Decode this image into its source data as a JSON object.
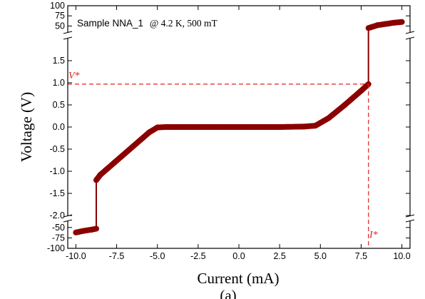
{
  "chart_data": {
    "type": "scatter",
    "title": "",
    "xlabel": "Current (mA)",
    "ylabel": "Voltage (V)",
    "caption": "(a)",
    "annotation_prefix": "Sample NNA_1",
    "annotation_conditions": "@ 4.2 K, 500 mT",
    "xlim": [
      -10.5,
      10.5
    ],
    "x_ticks": [
      -10.0,
      -7.5,
      -5.0,
      -2.5,
      0.0,
      2.5,
      5.0,
      7.5,
      10.0
    ],
    "x_tick_labels": [
      "-10.0",
      "-7.5",
      "-5.0",
      "-2.5",
      "0.0",
      "2.5",
      "5.0",
      "7.5",
      "10.0"
    ],
    "y_segments": [
      {
        "name": "upper",
        "range": [
          35,
          100
        ],
        "ticks": [
          50,
          75,
          100
        ],
        "tick_labels": [
          "50",
          "75",
          "100"
        ]
      },
      {
        "name": "middle",
        "range": [
          -2.0,
          2.0
        ],
        "ticks": [
          -2.0,
          -1.5,
          -1.0,
          -0.5,
          0.0,
          0.5,
          1.0,
          1.5
        ],
        "tick_labels": [
          "-2.0",
          "-1.5",
          "-1.0",
          "-0.5",
          "0.0",
          "0.5",
          "1.0",
          "1.5"
        ]
      },
      {
        "name": "lower",
        "range": [
          -100,
          -35
        ],
        "ticks": [
          -100,
          -75,
          -50
        ],
        "tick_labels": [
          "-100",
          "-75",
          "-50"
        ]
      }
    ],
    "series": [
      {
        "color": "#8b0000",
        "points": [
          [
            -10.0,
            -62
          ],
          [
            -9.5,
            -58
          ],
          [
            -9.0,
            -55
          ],
          [
            -8.75,
            -53
          ],
          [
            -8.75,
            -1.2
          ],
          [
            -8.5,
            -1.08
          ],
          [
            -7.5,
            -0.76
          ],
          [
            -6.5,
            -0.44
          ],
          [
            -5.5,
            -0.12
          ],
          [
            -5.0,
            -0.01
          ],
          [
            -4.5,
            0.0
          ],
          [
            -2.5,
            0.0
          ],
          [
            0.0,
            0.0
          ],
          [
            2.5,
            0.0
          ],
          [
            4.0,
            0.01
          ],
          [
            4.7,
            0.03
          ],
          [
            5.5,
            0.2
          ],
          [
            6.5,
            0.5
          ],
          [
            7.5,
            0.82
          ],
          [
            7.95,
            0.97
          ],
          [
            7.95,
            45
          ],
          [
            8.5,
            52
          ],
          [
            9.0,
            55
          ],
          [
            9.5,
            58
          ],
          [
            10.0,
            60
          ]
        ]
      }
    ],
    "critical_voltage": {
      "label": "V*",
      "value": 0.97
    },
    "critical_current": {
      "label": "I*",
      "value": 7.95
    }
  }
}
